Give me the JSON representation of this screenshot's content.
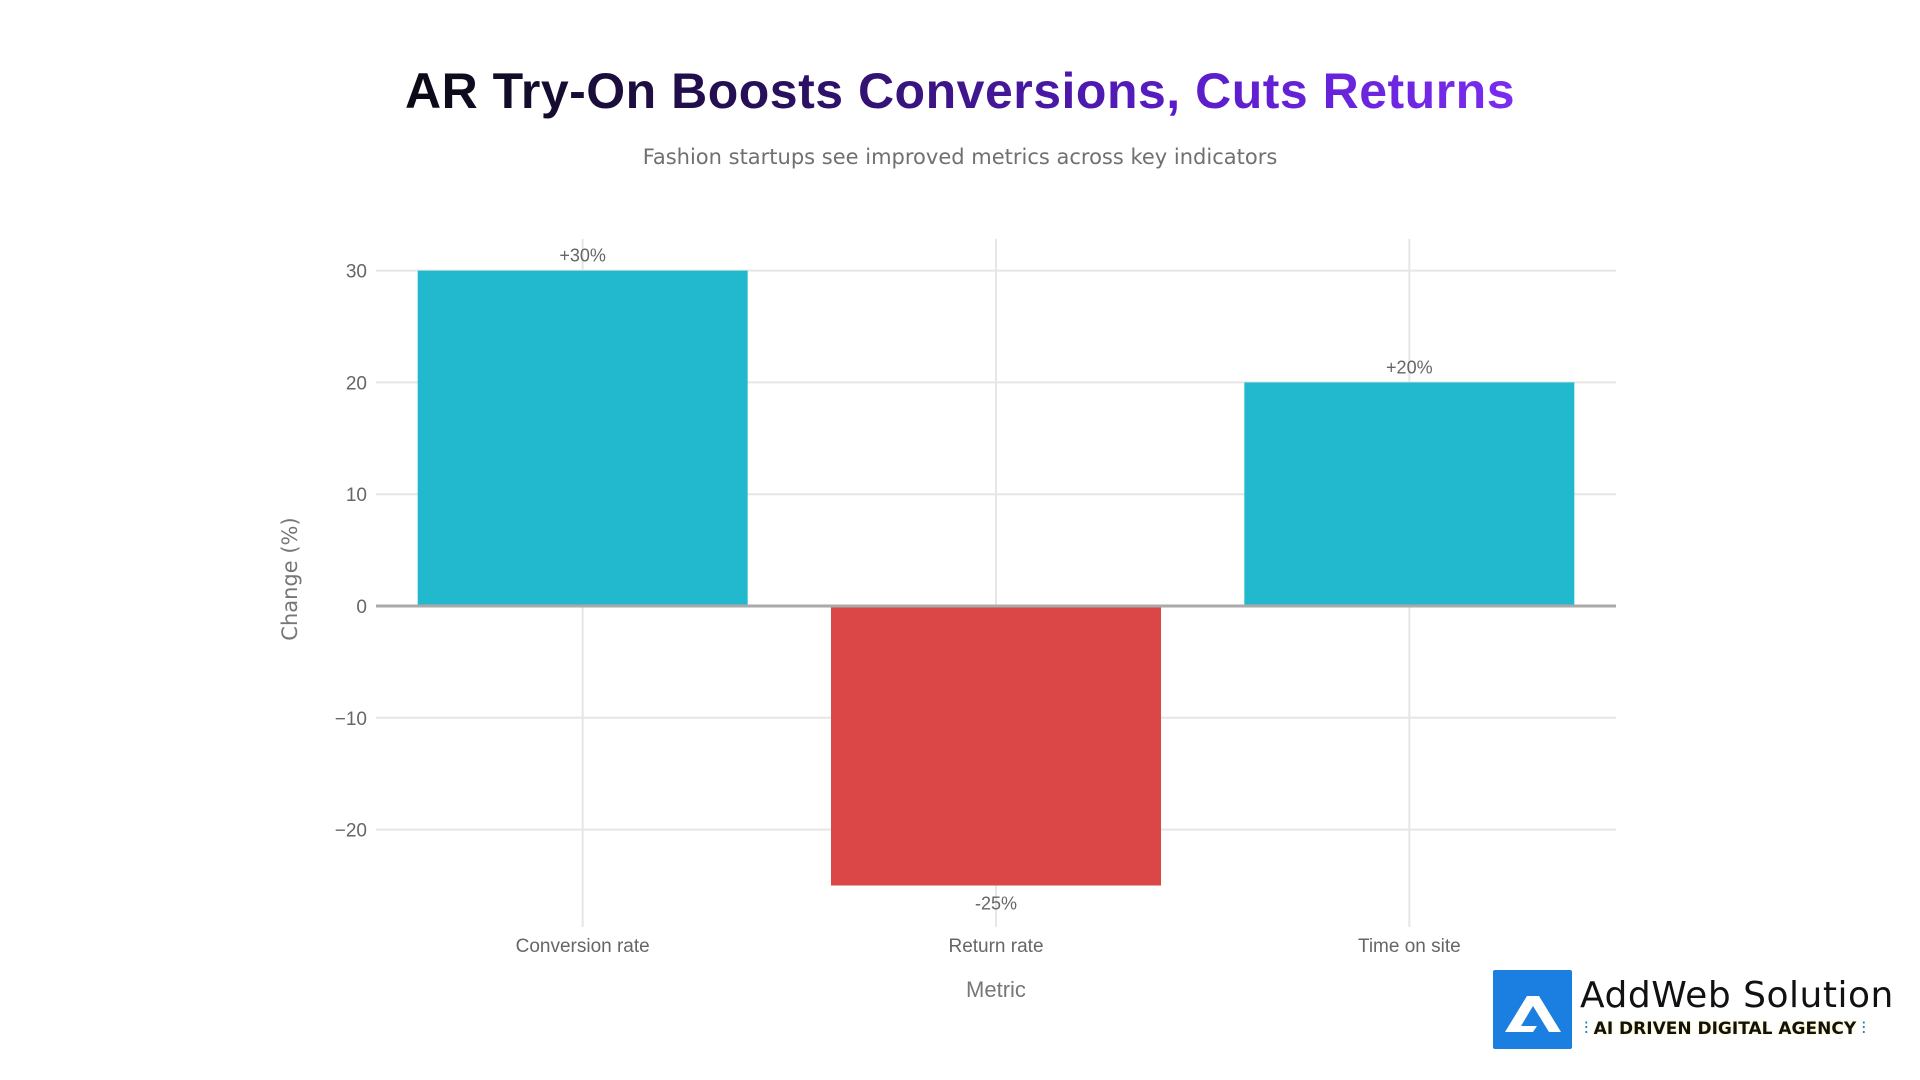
{
  "chart_data": {
    "type": "bar",
    "title": "AR Try-On Boosts Conversions, Cuts Returns",
    "subtitle": "Fashion startups see improved metrics across key indicators",
    "xlabel": "Metric",
    "ylabel": "Change (%)",
    "categories": [
      "Conversion rate",
      "Return rate",
      "Time on site"
    ],
    "values": [
      30,
      -25,
      20
    ],
    "data_labels": [
      "+30%",
      "-25%",
      "+20%"
    ],
    "colors": [
      "#22b8cd",
      "#db4646",
      "#22b8cd"
    ],
    "yticks": [
      30,
      20,
      10,
      0,
      -10,
      -20
    ],
    "ytick_labels": [
      "30",
      "20",
      "10",
      "0",
      "−10",
      "−20"
    ],
    "ylim": [
      -28,
      33
    ],
    "grid": true,
    "legend": "none"
  },
  "branding": {
    "name": "AddWeb Solution",
    "tagline": "AI DRIVEN DIGITAL AGENCY",
    "color": "#1a7fe0"
  }
}
